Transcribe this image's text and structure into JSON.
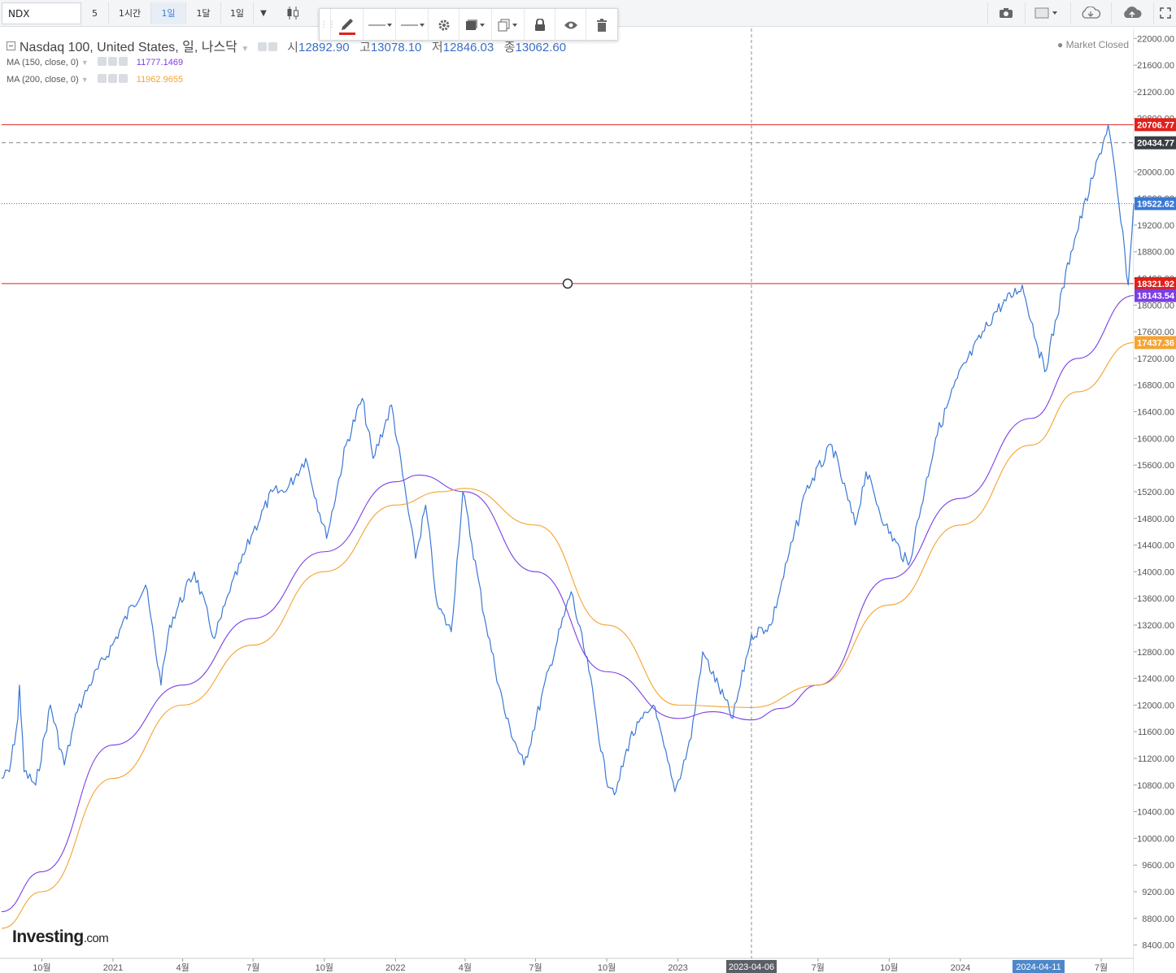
{
  "toolbar": {
    "symbol": "NDX",
    "intervals": [
      "5",
      "1시간",
      "1일",
      "1달",
      "1일"
    ],
    "active_interval": "1일"
  },
  "legend": {
    "title": "Nasdaq 100, United States, 일, 나스닥",
    "open_label": "시",
    "open": "12892.90",
    "high_label": "고",
    "high": "13078.10",
    "low_label": "저",
    "low": "12846.03",
    "close_label": "종",
    "close": "13062.60",
    "ma150_label": "MA (150, close, 0)",
    "ma150_value": "11777.1469",
    "ma200_label": "MA (200, close, 0)",
    "ma200_value": "11962.9655",
    "market_status": "Market Closed"
  },
  "watermark": {
    "brand": "Investing",
    "suffix": ".com"
  },
  "colors": {
    "price": "#3b78d4",
    "ma150": "#7b3fe4",
    "ma200": "#f5a331",
    "hline": "#e0201b",
    "last_price": "#3b78d4"
  },
  "chart_data": {
    "type": "line",
    "title": "Nasdaq 100, United States, 일, 나스닥",
    "ylim": [
      8200,
      22150
    ],
    "y_ticks": [
      8400,
      8800,
      9200,
      9600,
      10000,
      10400,
      10800,
      11200,
      11600,
      12000,
      12400,
      12800,
      13200,
      13600,
      14000,
      14400,
      14800,
      15200,
      15600,
      16000,
      16400,
      16800,
      17200,
      17600,
      18000,
      18400,
      18800,
      19200,
      19600,
      20000,
      20400,
      20800,
      21200,
      21600,
      22000
    ],
    "x_ticks": [
      {
        "date": "2020-10-01",
        "label": "10월"
      },
      {
        "date": "2021-01-01",
        "label": "2021"
      },
      {
        "date": "2021-04-01",
        "label": "4월"
      },
      {
        "date": "2021-07-01",
        "label": "7월"
      },
      {
        "date": "2021-10-01",
        "label": "10월"
      },
      {
        "date": "2022-01-01",
        "label": "2022"
      },
      {
        "date": "2022-04-01",
        "label": "4월"
      },
      {
        "date": "2022-07-01",
        "label": "7월"
      },
      {
        "date": "2022-10-01",
        "label": "10월"
      },
      {
        "date": "2023-01-01",
        "label": "2023"
      },
      {
        "date": "2023-07-01",
        "label": "7월"
      },
      {
        "date": "2023-10-01",
        "label": "10월"
      },
      {
        "date": "2024-01-01",
        "label": "2024"
      },
      {
        "date": "2024-07-01",
        "label": "7월"
      }
    ],
    "x_range": [
      "2020-08-10",
      "2024-08-12"
    ],
    "crosshair": {
      "date": "2023-04-06",
      "label": "2023-04-06"
    },
    "x_highlight": {
      "date": "2024-04-11",
      "label": "2024-04-11"
    },
    "horizontal_lines": [
      {
        "value": 20706.77,
        "label": "20706.77",
        "style": "solid",
        "color": "#e0201b"
      },
      {
        "value": 20434.77,
        "label": "20434.77",
        "style": "dashed",
        "color": "#888888"
      },
      {
        "value": 18321.92,
        "label": "18321.92",
        "style": "solid",
        "color": "#e0201b"
      }
    ],
    "last_price_line": {
      "value": 19522.62,
      "label": "19522.62"
    },
    "ma_tags": [
      {
        "value": 18143.54,
        "label": "18143.54",
        "color": "#7b3fe4"
      },
      {
        "value": 17437.36,
        "label": "17437.36",
        "color": "#f5a331"
      }
    ],
    "series": [
      {
        "name": "Nasdaq 100",
        "color": "#3b78d4",
        "points": [
          [
            "2020-08-10",
            10900
          ],
          [
            "2020-08-20",
            11000
          ],
          [
            "2020-08-31",
            11800
          ],
          [
            "2020-09-02",
            12300
          ],
          [
            "2020-09-08",
            11000
          ],
          [
            "2020-09-23",
            10800
          ],
          [
            "2020-10-12",
            12000
          ],
          [
            "2020-10-30",
            11100
          ],
          [
            "2020-11-16",
            11900
          ],
          [
            "2020-12-01",
            12300
          ],
          [
            "2020-12-31",
            12900
          ],
          [
            "2021-01-26",
            13500
          ],
          [
            "2021-02-12",
            13800
          ],
          [
            "2021-03-04",
            12300
          ],
          [
            "2021-03-15",
            13200
          ],
          [
            "2021-04-16",
            14000
          ],
          [
            "2021-05-12",
            13000
          ],
          [
            "2021-06-01",
            13700
          ],
          [
            "2021-07-01",
            14600
          ],
          [
            "2021-07-26",
            15200
          ],
          [
            "2021-08-12",
            15200
          ],
          [
            "2021-09-07",
            15700
          ],
          [
            "2021-10-04",
            14500
          ],
          [
            "2021-10-29",
            15900
          ],
          [
            "2021-11-19",
            16600
          ],
          [
            "2021-12-03",
            15700
          ],
          [
            "2021-12-27",
            16500
          ],
          [
            "2022-01-27",
            14200
          ],
          [
            "2022-02-09",
            15000
          ],
          [
            "2022-02-24",
            13500
          ],
          [
            "2022-03-14",
            13100
          ],
          [
            "2022-03-29",
            15200
          ],
          [
            "2022-04-28",
            13200
          ],
          [
            "2022-05-24",
            11800
          ],
          [
            "2022-06-16",
            11100
          ],
          [
            "2022-07-20",
            12600
          ],
          [
            "2022-08-16",
            13700
          ],
          [
            "2022-09-08",
            12500
          ],
          [
            "2022-09-30",
            10900
          ],
          [
            "2022-10-13",
            10700
          ],
          [
            "2022-10-31",
            11500
          ],
          [
            "2022-11-30",
            12000
          ],
          [
            "2022-12-28",
            10700
          ],
          [
            "2023-01-18",
            11500
          ],
          [
            "2023-02-02",
            12800
          ],
          [
            "2023-03-13",
            11800
          ],
          [
            "2023-04-06",
            13062.6
          ],
          [
            "2023-05-01",
            13200
          ],
          [
            "2023-06-15",
            15200
          ],
          [
            "2023-07-19",
            15900
          ],
          [
            "2023-08-18",
            14700
          ],
          [
            "2023-09-01",
            15500
          ],
          [
            "2023-09-26",
            14700
          ],
          [
            "2023-10-26",
            14100
          ],
          [
            "2023-11-30",
            16000
          ],
          [
            "2023-12-28",
            16900
          ],
          [
            "2024-02-15",
            17900
          ],
          [
            "2024-03-21",
            18300
          ],
          [
            "2024-04-19",
            17000
          ],
          [
            "2024-05-23",
            18800
          ],
          [
            "2024-06-20",
            19900
          ],
          [
            "2024-07-10",
            20706.77
          ],
          [
            "2024-07-24",
            19500
          ],
          [
            "2024-08-05",
            18300
          ],
          [
            "2024-08-12",
            19522.62
          ]
        ]
      },
      {
        "name": "MA (150, close, 0)",
        "color": "#7b3fe4",
        "points": [
          [
            "2020-08-10",
            8900
          ],
          [
            "2020-10-01",
            9500
          ],
          [
            "2021-01-01",
            11400
          ],
          [
            "2021-04-01",
            12300
          ],
          [
            "2021-07-01",
            13300
          ],
          [
            "2021-10-01",
            14300
          ],
          [
            "2022-01-01",
            15350
          ],
          [
            "2022-01-31",
            15450
          ],
          [
            "2022-04-01",
            15200
          ],
          [
            "2022-07-01",
            14000
          ],
          [
            "2022-10-01",
            12500
          ],
          [
            "2023-01-01",
            11800
          ],
          [
            "2023-02-15",
            11900
          ],
          [
            "2023-04-06",
            11777.1469
          ],
          [
            "2023-05-15",
            11950
          ],
          [
            "2023-07-01",
            12300
          ],
          [
            "2023-10-01",
            13900
          ],
          [
            "2024-01-01",
            15100
          ],
          [
            "2024-04-01",
            16300
          ],
          [
            "2024-06-01",
            17200
          ],
          [
            "2024-08-12",
            18143.54
          ]
        ]
      },
      {
        "name": "MA (200, close, 0)",
        "color": "#f5a331",
        "points": [
          [
            "2020-08-10",
            8650
          ],
          [
            "2020-10-01",
            9200
          ],
          [
            "2021-01-01",
            10900
          ],
          [
            "2021-04-01",
            12000
          ],
          [
            "2021-07-01",
            12900
          ],
          [
            "2021-10-01",
            14000
          ],
          [
            "2022-01-01",
            15000
          ],
          [
            "2022-03-01",
            15200
          ],
          [
            "2022-04-01",
            15250
          ],
          [
            "2022-07-01",
            14700
          ],
          [
            "2022-10-01",
            13200
          ],
          [
            "2023-01-01",
            12000
          ],
          [
            "2023-04-06",
            11962.9655
          ],
          [
            "2023-07-01",
            12300
          ],
          [
            "2023-10-01",
            13500
          ],
          [
            "2024-01-01",
            14700
          ],
          [
            "2024-04-01",
            15900
          ],
          [
            "2024-06-01",
            16700
          ],
          [
            "2024-08-12",
            17437.36
          ]
        ]
      }
    ]
  }
}
